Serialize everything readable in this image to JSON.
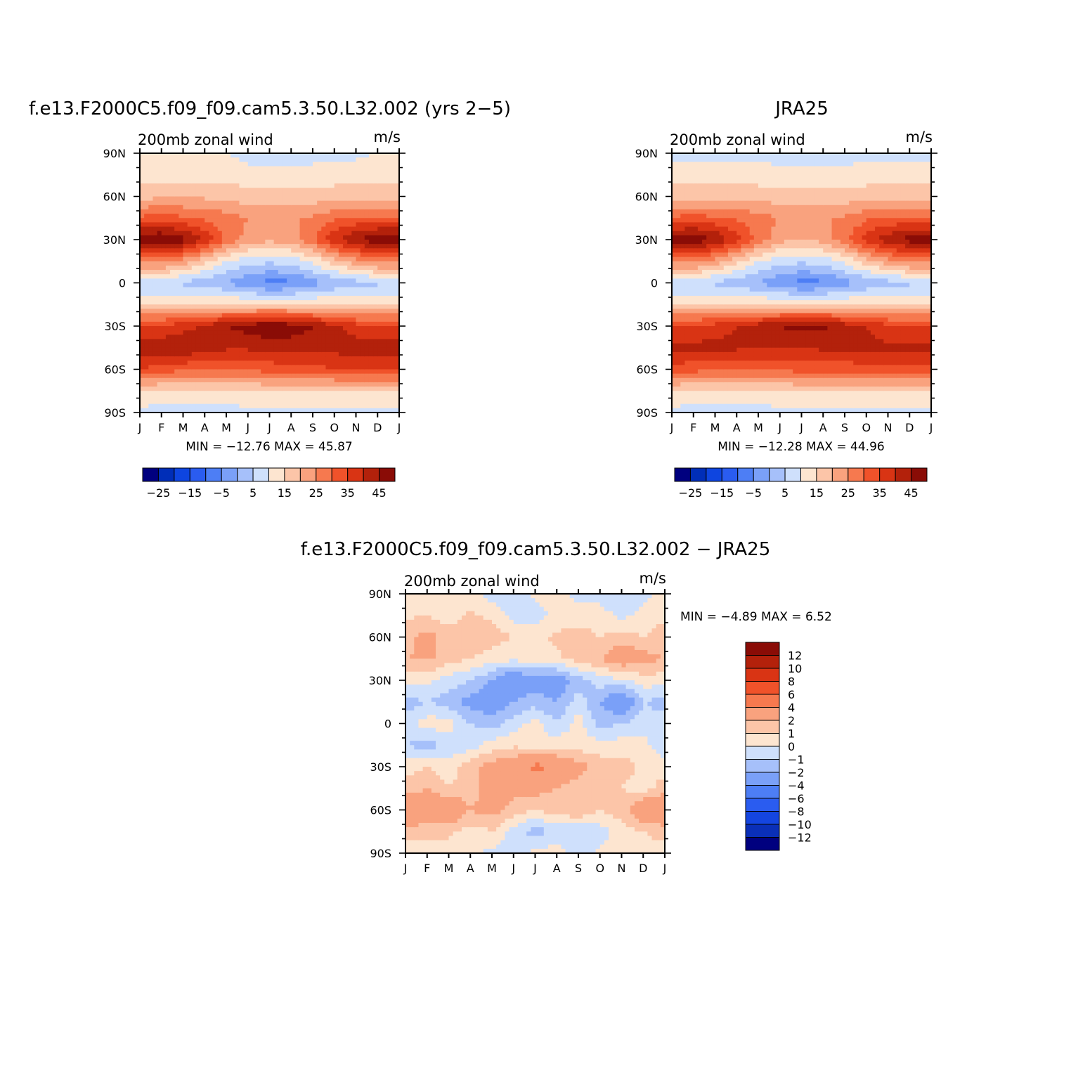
{
  "chart_data": [
    {
      "type": "heatmap",
      "id": "model",
      "title": "f.e13.F2000C5.f09_f09.cam5.3.50.L32.002 (yrs 2−5)",
      "subtitle_left": "200mb zonal wind",
      "subtitle_right": "m/s",
      "x_tick_labels": [
        "J",
        "F",
        "M",
        "A",
        "M",
        "J",
        "J",
        "A",
        "S",
        "O",
        "N",
        "D",
        "J"
      ],
      "y_tick_labels": [
        "90N",
        "60N",
        "30N",
        "0",
        "30S",
        "60S",
        "90S"
      ],
      "ylim": [
        -90,
        90
      ],
      "x_unit": "month",
      "stats_text": "MIN = −12.76 MAX =   45.87",
      "min": -12.76,
      "max": 45.87,
      "lat_rows": [
        90,
        75,
        60,
        45,
        30,
        15,
        0,
        -15,
        -30,
        -45,
        -60,
        -75,
        -90
      ],
      "values_by_month": [
        [
          5,
          8,
          13,
          26,
          44,
          22,
          -1,
          10,
          30,
          38,
          30,
          10,
          3
        ],
        [
          5,
          8,
          14,
          27,
          46,
          22,
          0,
          10,
          31,
          38,
          28,
          9,
          3
        ],
        [
          5,
          8,
          14,
          26,
          42,
          18,
          -1,
          10,
          33,
          40,
          26,
          9,
          3
        ],
        [
          5,
          8,
          14,
          24,
          34,
          12,
          -3,
          11,
          36,
          38,
          25,
          9,
          3
        ],
        [
          5,
          8,
          14,
          22,
          24,
          5,
          -5,
          11,
          40,
          36,
          25,
          9,
          3
        ],
        [
          3,
          7,
          12,
          20,
          18,
          2,
          -9,
          10,
          42,
          36,
          26,
          10,
          3
        ],
        [
          3,
          6,
          12,
          19,
          16,
          1,
          -12,
          10,
          45,
          36,
          27,
          10,
          3
        ],
        [
          3,
          6,
          12,
          19,
          18,
          2,
          -11,
          10,
          43,
          37,
          28,
          10,
          3
        ],
        [
          3,
          7,
          12,
          21,
          24,
          6,
          -7,
          10,
          40,
          38,
          28,
          10,
          3
        ],
        [
          4,
          7,
          13,
          24,
          34,
          13,
          -4,
          10,
          36,
          37,
          30,
          10,
          3
        ],
        [
          4,
          7,
          13,
          26,
          40,
          18,
          -2,
          9,
          32,
          38,
          30,
          10,
          3
        ],
        [
          5,
          8,
          13,
          26,
          44,
          22,
          -1,
          10,
          30,
          38,
          30,
          10,
          3
        ]
      ],
      "levels": [
        -30,
        -25,
        -20,
        -15,
        -10,
        -5,
        0,
        5,
        10,
        15,
        20,
        25,
        30,
        35,
        40,
        45
      ],
      "colorbar_labels": [
        "−25",
        "−15",
        "−5",
        "5",
        "15",
        "25",
        "35",
        "45"
      ]
    },
    {
      "type": "heatmap",
      "id": "obs",
      "title": "JRA25",
      "subtitle_left": "200mb zonal wind",
      "subtitle_right": "m/s",
      "x_tick_labels": [
        "J",
        "F",
        "M",
        "A",
        "M",
        "J",
        "J",
        "A",
        "S",
        "O",
        "N",
        "D",
        "J"
      ],
      "y_tick_labels": [
        "90N",
        "60N",
        "30N",
        "0",
        "30S",
        "60S",
        "90S"
      ],
      "ylim": [
        -90,
        90
      ],
      "stats_text": "MIN = −12.28 MAX =   44.96",
      "min": -12.28,
      "max": 44.96,
      "lat_rows": [
        90,
        75,
        60,
        45,
        30,
        15,
        0,
        -15,
        -30,
        -45,
        -60,
        -75,
        -90
      ],
      "values_by_month": [
        [
          4,
          7,
          13,
          26,
          42,
          22,
          -1,
          10,
          30,
          36,
          28,
          10,
          3
        ],
        [
          4,
          7,
          13,
          27,
          44,
          22,
          0,
          10,
          31,
          36,
          27,
          9,
          3
        ],
        [
          4,
          7,
          13,
          26,
          40,
          18,
          -1,
          10,
          32,
          37,
          26,
          9,
          3
        ],
        [
          4,
          7,
          13,
          24,
          32,
          12,
          -3,
          10,
          35,
          36,
          25,
          9,
          3
        ],
        [
          4,
          7,
          13,
          22,
          23,
          5,
          -5,
          10,
          38,
          35,
          25,
          9,
          3
        ],
        [
          3,
          6,
          12,
          20,
          17,
          2,
          -9,
          10,
          40,
          35,
          26,
          10,
          3
        ],
        [
          3,
          6,
          12,
          19,
          15,
          1,
          -12,
          10,
          42,
          35,
          27,
          10,
          3
        ],
        [
          3,
          6,
          12,
          19,
          17,
          2,
          -11,
          10,
          41,
          36,
          27,
          10,
          3
        ],
        [
          3,
          6,
          12,
          21,
          23,
          6,
          -7,
          10,
          38,
          36,
          27,
          10,
          3
        ],
        [
          4,
          7,
          13,
          24,
          32,
          13,
          -4,
          10,
          35,
          36,
          28,
          10,
          3
        ],
        [
          4,
          7,
          13,
          26,
          38,
          18,
          -2,
          9,
          32,
          36,
          28,
          10,
          3
        ],
        [
          4,
          7,
          13,
          26,
          42,
          22,
          -1,
          10,
          30,
          36,
          28,
          10,
          3
        ]
      ],
      "levels": [
        -30,
        -25,
        -20,
        -15,
        -10,
        -5,
        0,
        5,
        10,
        15,
        20,
        25,
        30,
        35,
        40,
        45
      ],
      "colorbar_labels": [
        "−25",
        "−15",
        "−5",
        "5",
        "15",
        "25",
        "35",
        "45"
      ]
    },
    {
      "type": "heatmap",
      "id": "diff",
      "title": "f.e13.F2000C5.f09_f09.cam5.3.50.L32.002 − JRA25",
      "subtitle_left": "200mb zonal wind",
      "subtitle_right": "m/s",
      "x_tick_labels": [
        "J",
        "F",
        "M",
        "A",
        "M",
        "J",
        "J",
        "A",
        "S",
        "O",
        "N",
        "D",
        "J"
      ],
      "y_tick_labels": [
        "90N",
        "60N",
        "30N",
        "0",
        "30S",
        "60S",
        "90S"
      ],
      "ylim": [
        -90,
        90
      ],
      "stats_text": "MIN =    −4.89 MAX =     6.52",
      "min": -4.89,
      "max": 6.52,
      "lat_rows": [
        90,
        75,
        60,
        45,
        30,
        15,
        0,
        -15,
        -30,
        -45,
        -60,
        -75,
        -90
      ],
      "values_by_month": [
        [
          0.5,
          0.8,
          1.5,
          2.0,
          0.5,
          -1.5,
          -0.5,
          -1.0,
          0.5,
          1.5,
          3.5,
          1.5,
          0.5
        ],
        [
          0.6,
          1.0,
          2.5,
          2.2,
          0.3,
          -1.0,
          0.5,
          -1.5,
          1.0,
          2.0,
          3.0,
          1.5,
          0.3
        ],
        [
          0.3,
          0.5,
          1.5,
          1.5,
          -0.5,
          -1.5,
          0.5,
          -0.8,
          0.5,
          1.0,
          3.5,
          1.2,
          0.5
        ],
        [
          0.4,
          1.2,
          2.0,
          1.0,
          -1.0,
          -2.5,
          -1.0,
          -0.5,
          1.5,
          1.5,
          2.0,
          0.5,
          0.2
        ],
        [
          -0.5,
          0.8,
          1.5,
          0.5,
          -2.0,
          -3.0,
          -1.5,
          0.5,
          2.5,
          2.5,
          2.5,
          1.0,
          -0.3
        ],
        [
          -0.8,
          -0.5,
          1.0,
          0.3,
          -3.5,
          -2.0,
          -0.5,
          0.8,
          3.0,
          2.5,
          1.5,
          -0.5,
          -0.5
        ],
        [
          0.3,
          -0.5,
          0.8,
          0.5,
          -2.5,
          -1.5,
          0.4,
          0.5,
          4.5,
          2.5,
          1.0,
          -1.5,
          0.3
        ],
        [
          0.5,
          0.3,
          1.2,
          0.8,
          -3.0,
          -2.0,
          -1.0,
          0.6,
          3.5,
          2.0,
          1.5,
          -0.8,
          0.5
        ],
        [
          -0.3,
          0.5,
          1.5,
          1.5,
          -1.5,
          -0.5,
          0.5,
          0.5,
          2.5,
          1.5,
          2.0,
          -1.0,
          -0.5
        ],
        [
          -0.5,
          0.5,
          1.0,
          2.0,
          -0.5,
          -2.0,
          -1.5,
          0.4,
          1.5,
          1.5,
          1.0,
          -0.5,
          0.3
        ],
        [
          -1.0,
          -0.3,
          1.5,
          3.0,
          -0.2,
          -3.5,
          -1.0,
          0.5,
          1.5,
          1.0,
          1.5,
          0.5,
          0.4
        ],
        [
          -0.5,
          0.4,
          1.0,
          2.5,
          0.5,
          -1.0,
          -0.5,
          0.5,
          0.8,
          0.5,
          3.5,
          1.0,
          0.5
        ]
      ],
      "levels": [
        -12,
        -10,
        -8,
        -6,
        -4,
        -2,
        -1,
        0,
        1,
        2,
        4,
        6,
        8,
        10,
        12
      ],
      "colorbar_labels": [
        "12",
        "10",
        "8",
        "6",
        "4",
        "2",
        "1",
        "0",
        "−1",
        "−2",
        "−4",
        "−6",
        "−8",
        "−10",
        "−12"
      ]
    }
  ],
  "colors": {
    "full_scale": [
      "#00007f",
      "#002eb8",
      "#0e45e0",
      "#2a5cf0",
      "#4d7ef5",
      "#7aa0f8",
      "#a6c0fa",
      "#cfe0fc",
      "#fde5d0",
      "#fcc5a8",
      "#f9a27e",
      "#f6794f",
      "#f0522a",
      "#d93414",
      "#b3210b",
      "#8a0c06",
      "#6a0000"
    ],
    "diff_scale": [
      "#00007f",
      "#0a2fb8",
      "#1445e0",
      "#2a5cf0",
      "#4d7ef5",
      "#7aa0f8",
      "#a6c0fa",
      "#cfe0fc",
      "#fde5d0",
      "#fcc5a8",
      "#f9a27e",
      "#f6794f",
      "#f0522a",
      "#d93414",
      "#b3210b",
      "#8a0c06"
    ]
  }
}
